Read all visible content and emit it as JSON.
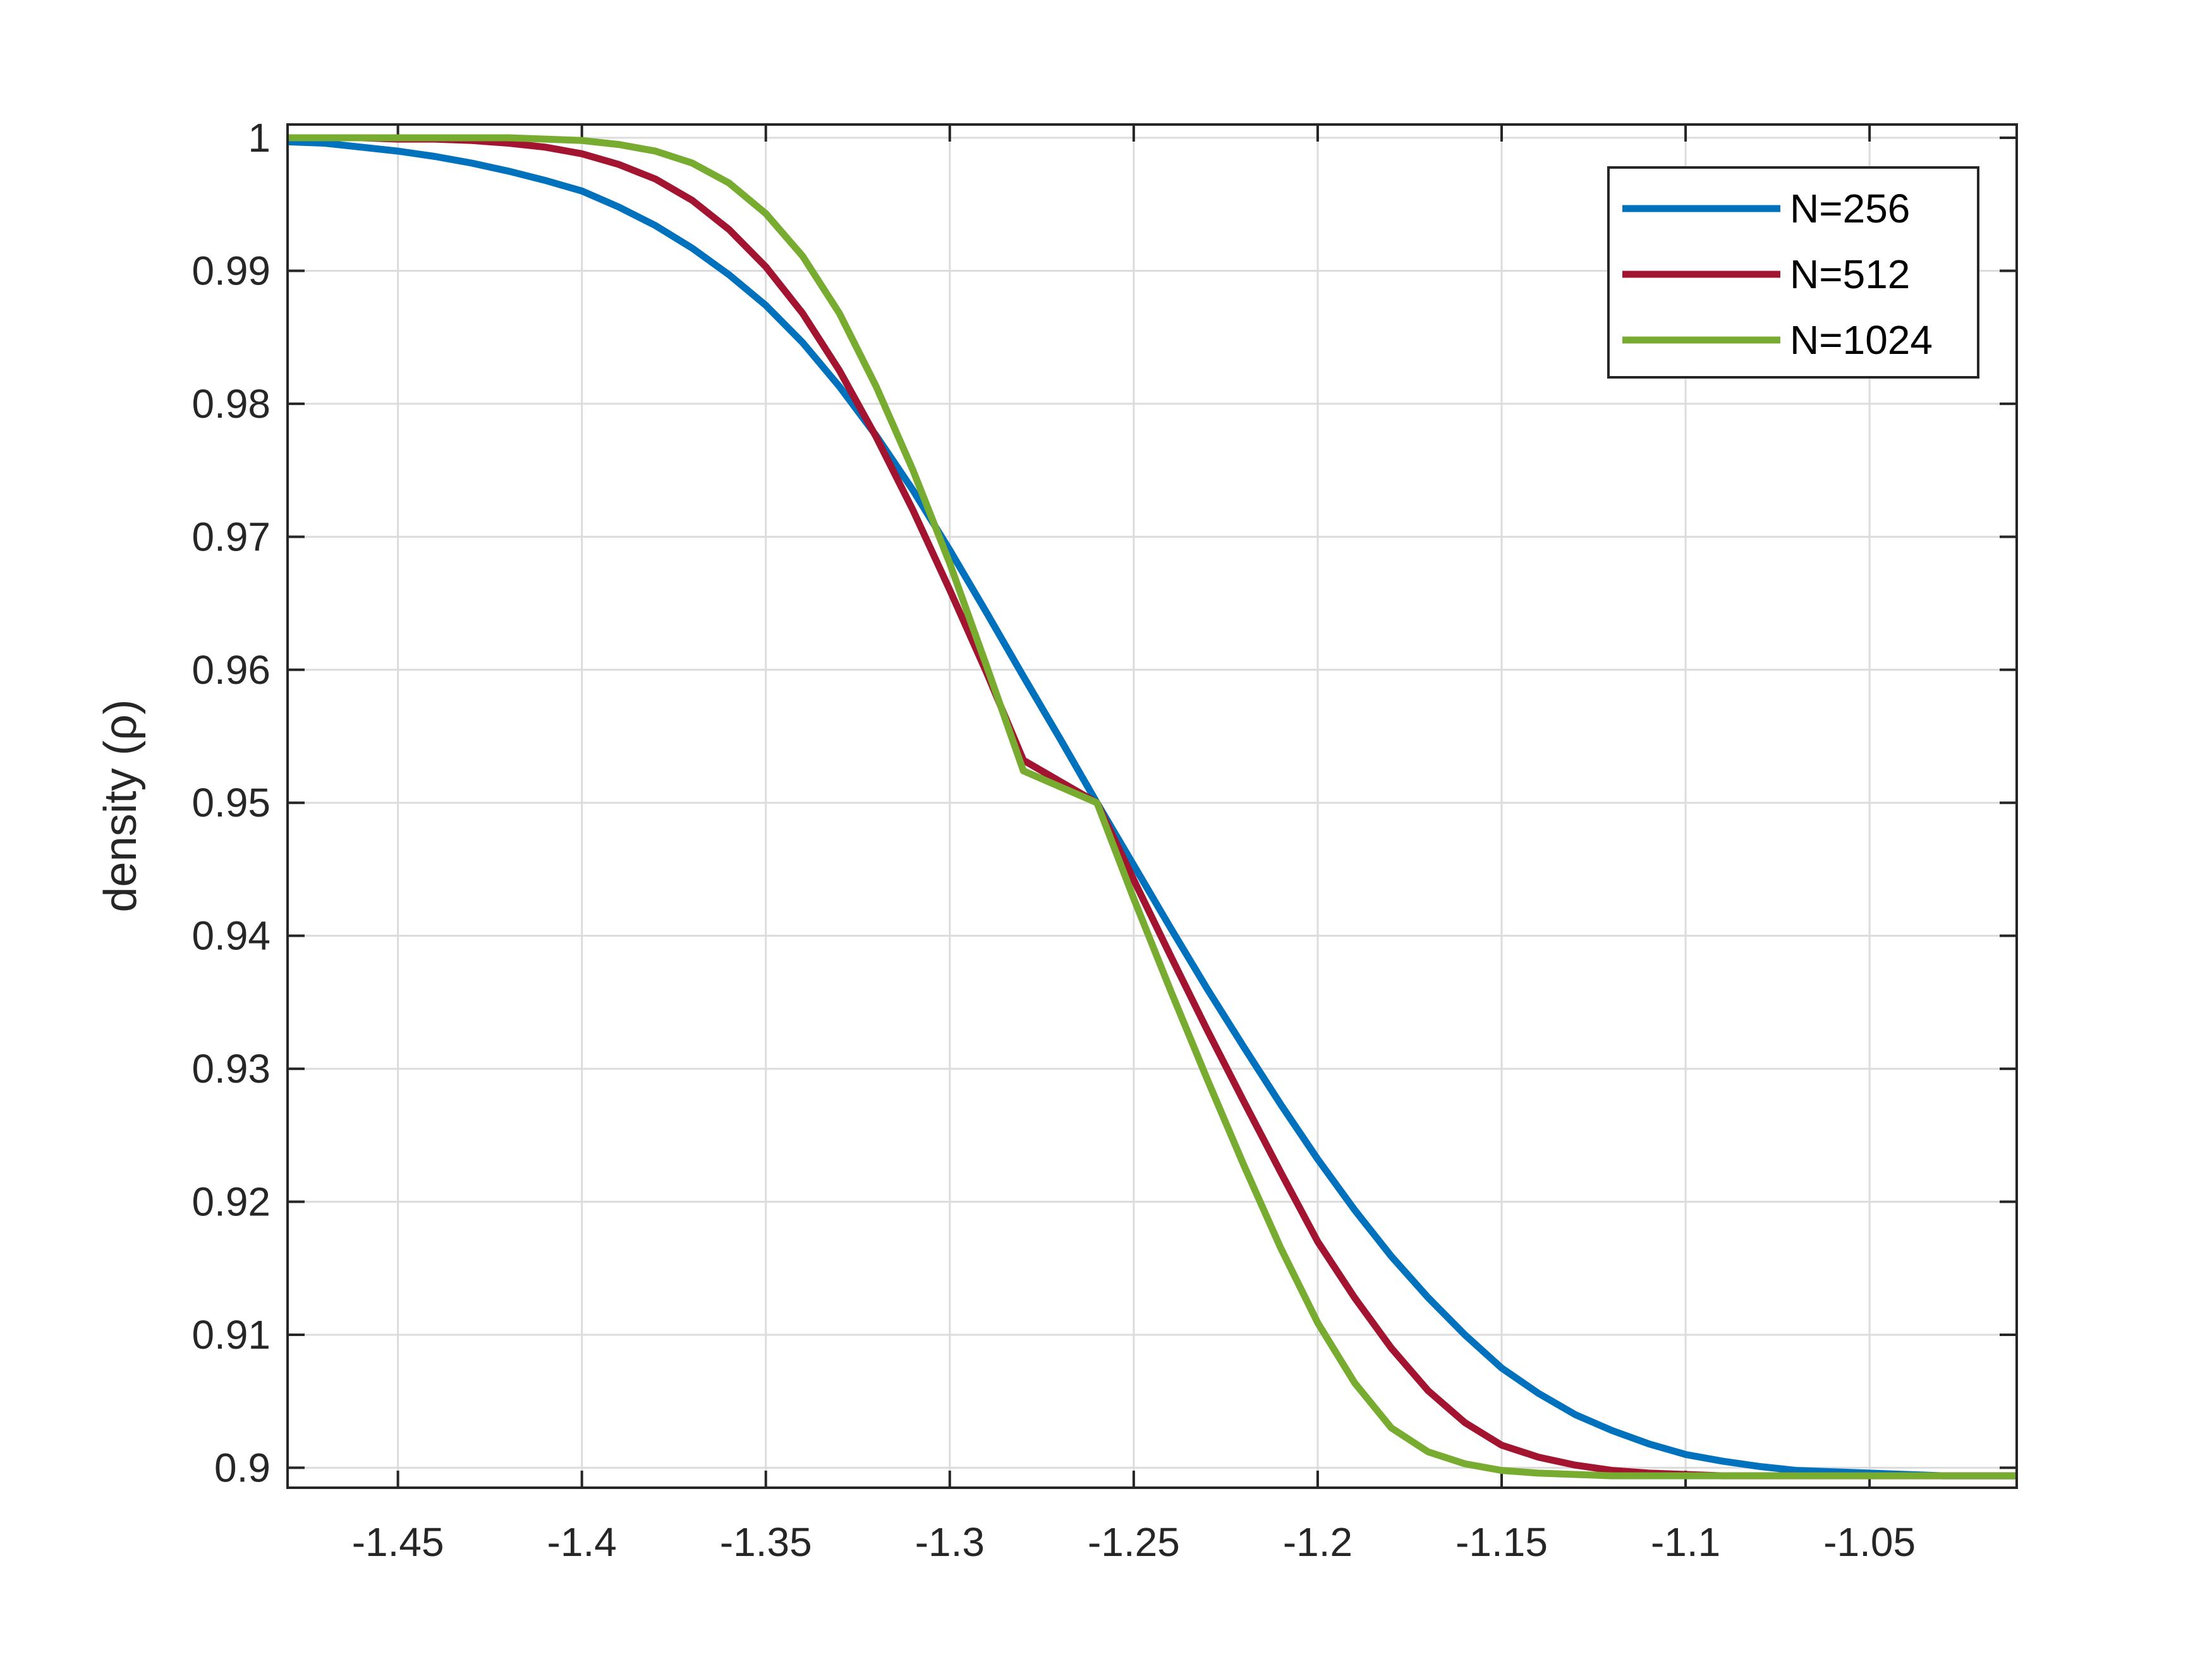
{
  "chart_data": {
    "type": "line",
    "title": "",
    "xlabel": "",
    "ylabel": "density (ρ)",
    "xlim": [
      -1.48,
      -1.01
    ],
    "ylim": [
      0.8985,
      1.001
    ],
    "xticks": [
      -1.45,
      -1.4,
      -1.35,
      -1.3,
      -1.25,
      -1.2,
      -1.15,
      -1.1,
      -1.05
    ],
    "xtick_labels": [
      "-1.45",
      "-1.4",
      "-1.35",
      "-1.3",
      "-1.25",
      "-1.2",
      "-1.15",
      "-1.1",
      "-1.05"
    ],
    "yticks": [
      0.9,
      0.91,
      0.92,
      0.93,
      0.94,
      0.95,
      0.96,
      0.97,
      0.98,
      0.99,
      1.0
    ],
    "ytick_labels": [
      "0.9",
      "0.91",
      "0.92",
      "0.93",
      "0.94",
      "0.95",
      "0.96",
      "0.97",
      "0.98",
      "0.99",
      "1"
    ],
    "grid": true,
    "legend_position": "top-right",
    "series": [
      {
        "name": "N=256",
        "color": "#0072BD",
        "x": [
          -1.48,
          -1.47,
          -1.46,
          -1.45,
          -1.44,
          -1.43,
          -1.42,
          -1.41,
          -1.4,
          -1.39,
          -1.38,
          -1.37,
          -1.36,
          -1.35,
          -1.34,
          -1.33,
          -1.32,
          -1.31,
          -1.3,
          -1.29,
          -1.28,
          -1.27,
          -1.26,
          -1.25,
          -1.24,
          -1.23,
          -1.22,
          -1.21,
          -1.2,
          -1.19,
          -1.18,
          -1.17,
          -1.16,
          -1.15,
          -1.14,
          -1.13,
          -1.12,
          -1.11,
          -1.1,
          -1.09,
          -1.08,
          -1.07,
          -1.06,
          -1.05,
          -1.04,
          -1.03,
          -1.02,
          -1.01
        ],
        "y": [
          0.9997,
          0.9996,
          0.9993,
          0.999,
          0.9986,
          0.9981,
          0.9975,
          0.9968,
          0.996,
          0.9948,
          0.9934,
          0.9917,
          0.9897,
          0.9874,
          0.9846,
          0.9813,
          0.9776,
          0.9735,
          0.969,
          0.9643,
          0.9595,
          0.9548,
          0.95,
          0.9453,
          0.9406,
          0.936,
          0.9316,
          0.9273,
          0.9232,
          0.9194,
          0.9159,
          0.9128,
          0.91,
          0.9075,
          0.9056,
          0.904,
          0.9028,
          0.9018,
          0.901,
          0.9005,
          0.9001,
          0.8998,
          0.8997,
          0.8996,
          0.8995,
          0.8994,
          0.8994,
          0.8994
        ]
      },
      {
        "name": "N=512",
        "color": "#A2142F",
        "x": [
          -1.48,
          -1.47,
          -1.46,
          -1.45,
          -1.44,
          -1.43,
          -1.42,
          -1.41,
          -1.4,
          -1.39,
          -1.38,
          -1.37,
          -1.36,
          -1.35,
          -1.34,
          -1.33,
          -1.32,
          -1.31,
          -1.3,
          -1.29,
          -1.28,
          -1.27,
          -1.26,
          -1.25,
          -1.24,
          -1.23,
          -1.22,
          -1.21,
          -1.2,
          -1.19,
          -1.18,
          -1.17,
          -1.16,
          -1.15,
          -1.14,
          -1.13,
          -1.12,
          -1.11,
          -1.1,
          -1.09,
          -1.08,
          -1.07,
          -1.06,
          -1.05,
          -1.04,
          -1.03,
          -1.02,
          -1.01
        ],
        "y": [
          1.0,
          1.0,
          1.0,
          0.9999,
          0.9999,
          0.9998,
          0.9996,
          0.9993,
          0.9988,
          0.998,
          0.9969,
          0.9953,
          0.9931,
          0.9903,
          0.9868,
          0.9825,
          0.9775,
          0.972,
          0.966,
          0.9598,
          0.9532,
          0.9516,
          0.95,
          0.9442,
          0.9385,
          0.9329,
          0.9275,
          0.9222,
          0.917,
          0.9128,
          0.909,
          0.9058,
          0.9034,
          0.9017,
          0.9008,
          0.9002,
          0.8998,
          0.8996,
          0.8995,
          0.8994,
          0.8994,
          0.8994,
          0.8994,
          0.8994,
          0.8994,
          0.8994,
          0.8994,
          0.8994
        ]
      },
      {
        "name": "N=1024",
        "color": "#77AC30",
        "x": [
          -1.48,
          -1.47,
          -1.46,
          -1.45,
          -1.44,
          -1.43,
          -1.42,
          -1.41,
          -1.4,
          -1.39,
          -1.38,
          -1.37,
          -1.36,
          -1.35,
          -1.34,
          -1.33,
          -1.32,
          -1.31,
          -1.3,
          -1.29,
          -1.28,
          -1.27,
          -1.26,
          -1.25,
          -1.24,
          -1.23,
          -1.22,
          -1.21,
          -1.2,
          -1.19,
          -1.18,
          -1.17,
          -1.16,
          -1.15,
          -1.14,
          -1.13,
          -1.12,
          -1.11,
          -1.1,
          -1.09,
          -1.08,
          -1.07,
          -1.06,
          -1.05,
          -1.04,
          -1.03,
          -1.02,
          -1.01
        ],
        "y": [
          1.0,
          1.0,
          1.0,
          1.0,
          1.0,
          1.0,
          1.0,
          0.9999,
          0.9998,
          0.9995,
          0.999,
          0.9981,
          0.9966,
          0.9943,
          0.9911,
          0.9868,
          0.9813,
          0.975,
          0.968,
          0.9603,
          0.9524,
          0.9512,
          0.95,
          0.9428,
          0.9359,
          0.9292,
          0.9227,
          0.9165,
          0.9109,
          0.9064,
          0.903,
          0.9012,
          0.9003,
          0.8998,
          0.8996,
          0.8995,
          0.8994,
          0.8994,
          0.8994,
          0.8994,
          0.8994,
          0.8994,
          0.8994,
          0.8994,
          0.8994,
          0.8994,
          0.8994,
          0.8994
        ]
      }
    ]
  }
}
